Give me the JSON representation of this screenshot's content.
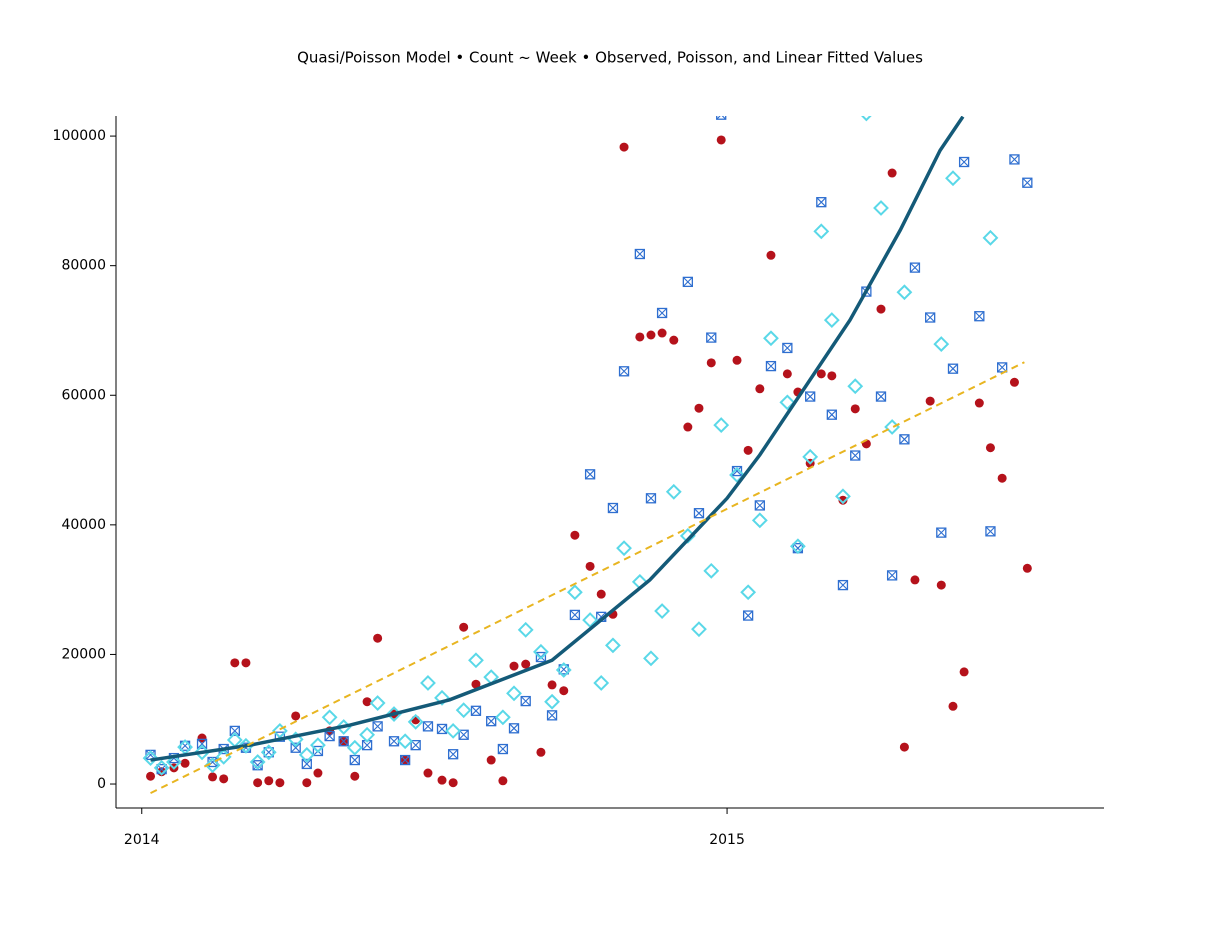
{
  "chart_data": {
    "type": "scatter",
    "title": "Quasi/Poisson Model • Count ~ Week • Observed, Poisson, and Linear Fitted Values",
    "xlim": [
      2013.956,
      2015.644
    ],
    "xticks": [
      2014,
      2015
    ],
    "ylim": [
      -3700,
      103100
    ],
    "yticks": [
      0,
      20000,
      40000,
      60000,
      80000,
      100000
    ],
    "grid": false,
    "series": [
      {
        "kind": "points",
        "marker": "circle",
        "color": "#b5121b",
        "x": [
          2014.015,
          2014.034,
          2014.055,
          2014.074,
          2014.103,
          2014.121,
          2014.14,
          2014.159,
          2014.178,
          2014.198,
          2014.217,
          2014.236,
          2014.263,
          2014.282,
          2014.301,
          2014.321,
          2014.345,
          2014.364,
          2014.385,
          2014.403,
          2014.431,
          2014.45,
          2014.468,
          2014.489,
          2014.513,
          2014.532,
          2014.55,
          2014.571,
          2014.597,
          2014.617,
          2014.636,
          2014.656,
          2014.682,
          2014.701,
          2014.721,
          2014.74,
          2014.766,
          2014.785,
          2014.805,
          2014.824,
          2014.851,
          2014.87,
          2014.889,
          2014.909,
          2014.933,
          2014.952,
          2014.973,
          2014.99,
          2015.017,
          2015.036,
          2015.056,
          2015.075,
          2015.103,
          2015.121,
          2015.142,
          2015.161,
          2015.179,
          2015.198,
          2015.219,
          2015.238,
          2015.263,
          2015.282,
          2015.303,
          2015.321,
          2015.347,
          2015.366,
          2015.386,
          2015.405,
          2015.431,
          2015.45,
          2015.47,
          2015.491,
          2015.513
        ],
        "values": [
          1200,
          1900,
          2500,
          3200,
          7100,
          1100,
          800,
          18700,
          18700,
          200,
          500,
          200,
          10500,
          200,
          1700,
          8200,
          6600,
          1200,
          12700,
          22500,
          10800,
          3700,
          9900,
          1700,
          600,
          200,
          24200,
          15400,
          3700,
          500,
          18200,
          18500,
          4900,
          15300,
          14400,
          38400,
          33600,
          29300,
          26200,
          98300,
          69000,
          69300,
          69600,
          68500,
          55100,
          58000,
          65000,
          99400,
          65400,
          51500,
          61000,
          81600,
          63300,
          60500,
          49500,
          63300,
          63000,
          43800,
          57900,
          52500,
          73300,
          94300,
          5700,
          31500,
          59100,
          30700,
          12000,
          17300,
          58800,
          51900,
          47200,
          62000,
          33300
        ]
      },
      {
        "kind": "points",
        "marker": "square-x",
        "color": "#2f6fd0",
        "x": [
          2014.015,
          2014.034,
          2014.055,
          2014.074,
          2014.103,
          2014.121,
          2014.14,
          2014.159,
          2014.178,
          2014.198,
          2014.217,
          2014.236,
          2014.263,
          2014.282,
          2014.301,
          2014.321,
          2014.345,
          2014.364,
          2014.385,
          2014.403,
          2014.431,
          2014.45,
          2014.468,
          2014.489,
          2014.513,
          2014.532,
          2014.55,
          2014.571,
          2014.597,
          2014.617,
          2014.636,
          2014.656,
          2014.682,
          2014.701,
          2014.721,
          2014.74,
          2014.766,
          2014.785,
          2014.805,
          2014.824,
          2014.851,
          2014.87,
          2014.889,
          2014.933,
          2014.952,
          2014.973,
          2014.99,
          2015.017,
          2015.036,
          2015.056,
          2015.075,
          2015.103,
          2015.121,
          2015.142,
          2015.161,
          2015.179,
          2015.198,
          2015.219,
          2015.238,
          2015.263,
          2015.282,
          2015.303,
          2015.321,
          2015.347,
          2015.366,
          2015.386,
          2015.405,
          2015.431,
          2015.45,
          2015.47,
          2015.491,
          2015.513
        ],
        "values": [
          4500,
          2300,
          4000,
          5900,
          6200,
          3400,
          5400,
          8200,
          5600,
          2900,
          4900,
          7300,
          5600,
          3100,
          5100,
          7400,
          6600,
          3700,
          6000,
          8900,
          6600,
          3700,
          6000,
          8900,
          8500,
          4600,
          7600,
          11300,
          9700,
          5400,
          8600,
          12800,
          19600,
          10600,
          17700,
          26100,
          47800,
          25800,
          42600,
          63700,
          81800,
          44100,
          72700,
          77500,
          41800,
          68900,
          103300,
          48300,
          26000,
          43000,
          64500,
          67300,
          36400,
          59800,
          89800,
          57000,
          30700,
          50700,
          76000,
          59800,
          32200,
          53200,
          79700,
          72000,
          38800,
          64100,
          96000,
          72200,
          39000,
          64300,
          96400,
          92800
        ]
      },
      {
        "kind": "points",
        "marker": "diamond",
        "color": "#5ad8e8",
        "x": [
          2014.015,
          2014.034,
          2014.055,
          2014.074,
          2014.103,
          2014.121,
          2014.14,
          2014.159,
          2014.178,
          2014.198,
          2014.217,
          2014.236,
          2014.263,
          2014.282,
          2014.301,
          2014.321,
          2014.345,
          2014.364,
          2014.385,
          2014.403,
          2014.431,
          2014.45,
          2014.468,
          2014.489,
          2014.513,
          2014.532,
          2014.55,
          2014.571,
          2014.597,
          2014.617,
          2014.636,
          2014.656,
          2014.682,
          2014.701,
          2014.721,
          2014.74,
          2014.766,
          2014.785,
          2014.805,
          2014.824,
          2014.851,
          2014.87,
          2014.889,
          2014.909,
          2014.933,
          2014.952,
          2014.973,
          2014.99,
          2015.017,
          2015.036,
          2015.056,
          2015.075,
          2015.103,
          2015.121,
          2015.142,
          2015.161,
          2015.179,
          2015.198,
          2015.219,
          2015.238,
          2015.263,
          2015.282,
          2015.303,
          2015.366,
          2015.386,
          2015.45
        ],
        "values": [
          4000,
          2500,
          3400,
          5700,
          4900,
          2900,
          4200,
          6800,
          5900,
          3400,
          4900,
          8200,
          6900,
          4500,
          6000,
          10300,
          8800,
          5600,
          7600,
          12500,
          10800,
          6600,
          9600,
          15600,
          13300,
          8200,
          11400,
          19100,
          16500,
          10300,
          14000,
          23800,
          20400,
          12700,
          17600,
          29600,
          25300,
          15600,
          21400,
          36400,
          31200,
          19400,
          26700,
          45100,
          38300,
          23900,
          32900,
          55400,
          47700,
          29600,
          40700,
          68800,
          58900,
          36700,
          50500,
          85300,
          71600,
          44400,
          61400,
          103500,
          88900,
          55100,
          75900,
          67900,
          93500,
          84300
        ]
      },
      {
        "kind": "line",
        "color": "#145a78",
        "dash": false,
        "x": [
          2014.015,
          2014.185,
          2014.356,
          2014.526,
          2014.701,
          2014.868,
          2015.0,
          2015.056,
          2015.21,
          2015.296,
          2015.364,
          2015.403
        ],
        "values": [
          3700,
          6000,
          9100,
          13000,
          19100,
          31500,
          44100,
          50800,
          71600,
          85500,
          97800,
          103000
        ]
      },
      {
        "kind": "line",
        "color": "#e8b520",
        "dash": true,
        "x": [
          2014.015,
          2015.508
        ],
        "values": [
          -1400,
          65100
        ]
      }
    ]
  }
}
